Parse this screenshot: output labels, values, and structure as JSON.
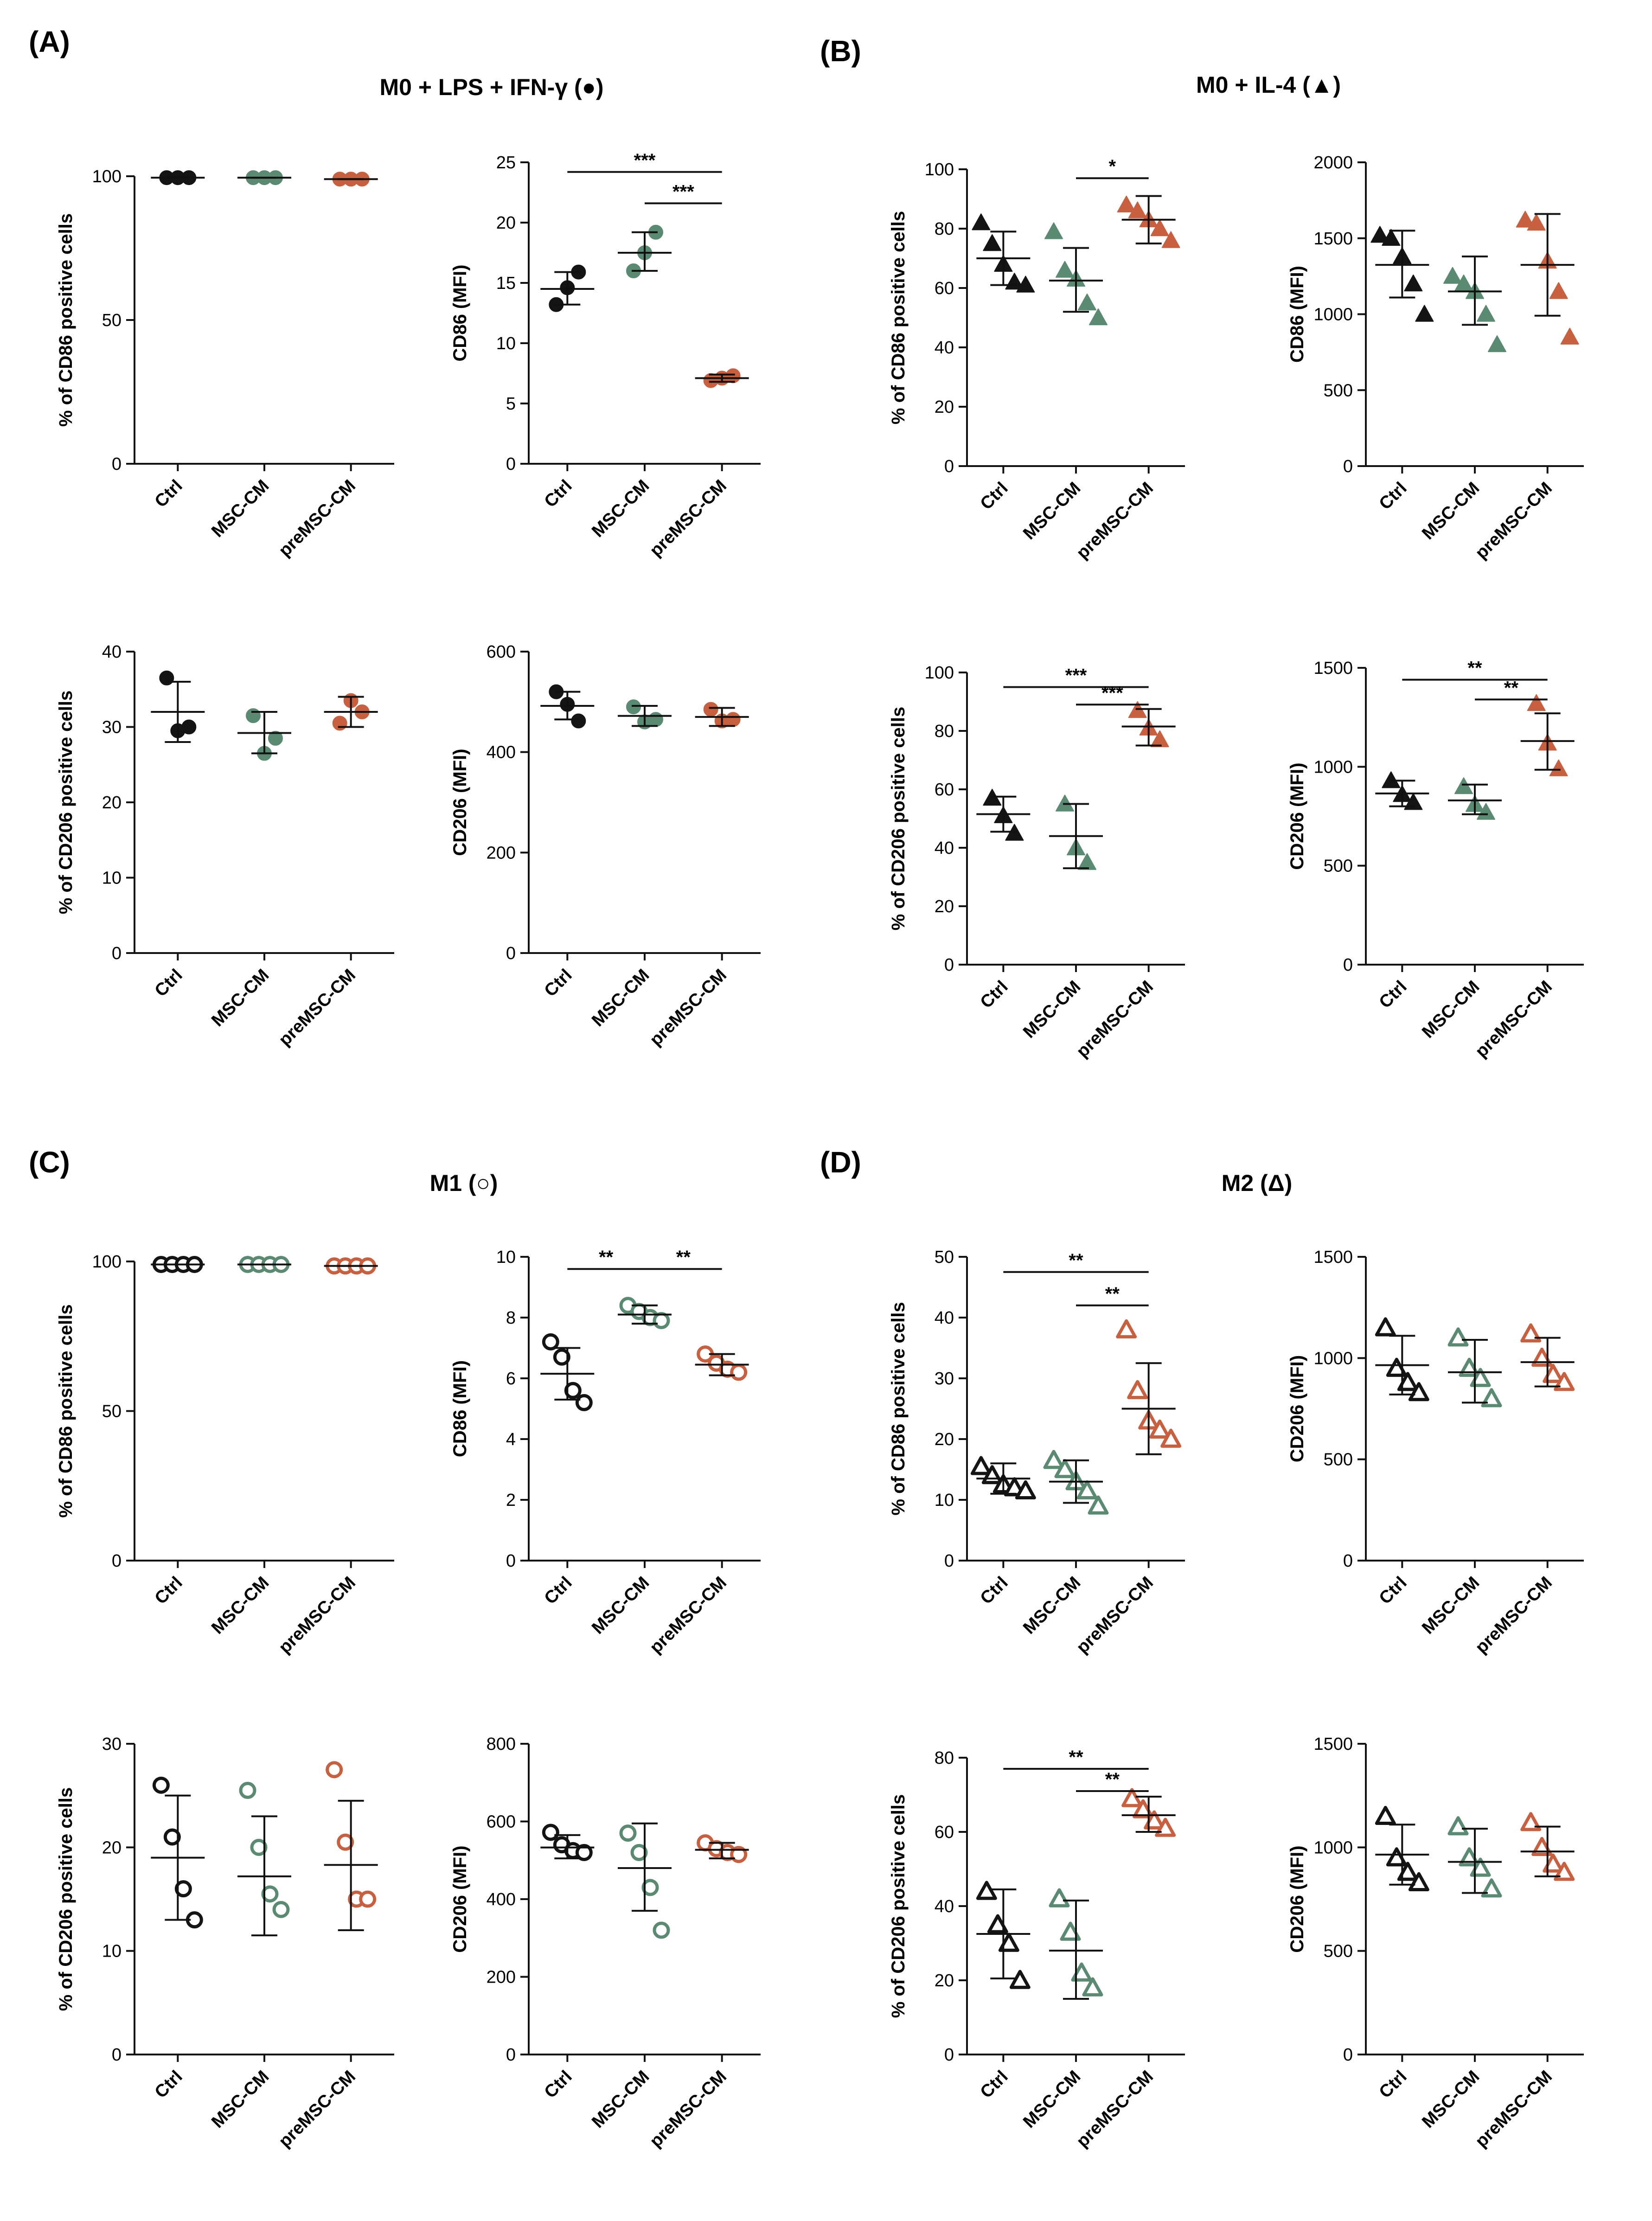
{
  "panels": [
    {
      "letter": "(A)",
      "title": "M0 + LPS + IFN-γ (●)"
    },
    {
      "letter": "(B)",
      "title": "M0 + IL-4 (▲)"
    },
    {
      "letter": "(C)",
      "title": "M1 (○)"
    },
    {
      "letter": "(D)",
      "title": "M2 (Δ)"
    }
  ],
  "group_colors": {
    "Ctrl": "#141414",
    "MSC-CM": "#5b8a72",
    "preMSC-CM": "#c8603f"
  },
  "chart_data": [
    {
      "id": "A1",
      "type": "scatter",
      "marker": "filled-circle",
      "ylabel": "% of CD86 positive cells",
      "ylim": [
        0,
        100
      ],
      "yticks": [
        0,
        50,
        100
      ],
      "categories": [
        "Ctrl",
        "MSC-CM",
        "preMSC-CM"
      ],
      "points": [
        [
          99.5,
          99.5,
          99.5
        ],
        [
          99.5,
          99.5,
          99.5
        ],
        [
          99,
          99,
          99
        ]
      ],
      "mean": [
        99.5,
        99.5,
        99
      ],
      "error": [
        [
          99.5,
          99.5
        ],
        [
          99.5,
          99.5
        ],
        [
          99,
          99
        ]
      ],
      "significance": []
    },
    {
      "id": "A2",
      "type": "scatter",
      "marker": "filled-circle",
      "ylabel": "CD86 (MFI)",
      "ylim": [
        0,
        25
      ],
      "yticks": [
        0,
        5,
        10,
        15,
        20,
        25
      ],
      "categories": [
        "Ctrl",
        "MSC-CM",
        "preMSC-CM"
      ],
      "points": [
        [
          13.2,
          14.6,
          15.9
        ],
        [
          16,
          17.5,
          19.2
        ],
        [
          6.9,
          7.1,
          7.3
        ]
      ],
      "mean": [
        14.5,
        17.5,
        7.1
      ],
      "error": [
        [
          13.2,
          15.9
        ],
        [
          16,
          19.2
        ],
        [
          6.8,
          7.4
        ]
      ],
      "significance": [
        {
          "from": 0,
          "to": 2,
          "label": "***",
          "y": 24.2
        },
        {
          "from": 1,
          "to": 2,
          "label": "***",
          "y": 21.6
        }
      ]
    },
    {
      "id": "A3",
      "type": "scatter",
      "marker": "filled-circle",
      "ylabel": "% of CD206 positive cells",
      "ylim": [
        0,
        40
      ],
      "yticks": [
        0,
        10,
        20,
        30,
        40
      ],
      "categories": [
        "Ctrl",
        "MSC-CM",
        "preMSC-CM"
      ],
      "points": [
        [
          36.5,
          29.5,
          30
        ],
        [
          31.5,
          26.5,
          28.5
        ],
        [
          30.5,
          33.5,
          32
        ]
      ],
      "mean": [
        32,
        29.2,
        32
      ],
      "error": [
        [
          28,
          36
        ],
        [
          26.5,
          32
        ],
        [
          30,
          34
        ]
      ],
      "significance": []
    },
    {
      "id": "A4",
      "type": "scatter",
      "marker": "filled-circle",
      "ylabel": "CD206 (MFI)",
      "ylim": [
        0,
        600
      ],
      "yticks": [
        0,
        200,
        400,
        600
      ],
      "categories": [
        "Ctrl",
        "MSC-CM",
        "preMSC-CM"
      ],
      "points": [
        [
          520,
          495,
          462
        ],
        [
          490,
          460,
          465
        ],
        [
          485,
          462,
          465
        ]
      ],
      "mean": [
        492,
        472,
        470
      ],
      "error": [
        [
          465,
          520
        ],
        [
          452,
          492
        ],
        [
          452,
          488
        ]
      ],
      "significance": []
    },
    {
      "id": "B1",
      "type": "scatter",
      "marker": "filled-triangle",
      "ylabel": "% of CD86 positive cells",
      "ylim": [
        0,
        100
      ],
      "yticks": [
        0,
        20,
        40,
        60,
        80,
        100
      ],
      "categories": [
        "Ctrl",
        "MSC-CM",
        "preMSC-CM"
      ],
      "points": [
        [
          82,
          75,
          68,
          62,
          61
        ],
        [
          79,
          66,
          63,
          55,
          50
        ],
        [
          88,
          86,
          83,
          80,
          76
        ]
      ],
      "mean": [
        70,
        62.5,
        83
      ],
      "error": [
        [
          61,
          79
        ],
        [
          52,
          73.5
        ],
        [
          75,
          91
        ]
      ],
      "significance": [
        {
          "from": 1,
          "to": 2,
          "label": "*",
          "y": 97
        }
      ]
    },
    {
      "id": "B2",
      "type": "scatter",
      "marker": "filled-triangle",
      "ylabel": "CD86 (MFI)",
      "ylim": [
        0,
        2000
      ],
      "yticks": [
        0,
        500,
        1000,
        1500,
        2000
      ],
      "categories": [
        "Ctrl",
        "MSC-CM",
        "preMSC-CM"
      ],
      "points": [
        [
          1520,
          1500,
          1380,
          1200,
          1000
        ],
        [
          1250,
          1200,
          1150,
          1000,
          800
        ],
        [
          1620,
          1600,
          1350,
          1150,
          850
        ]
      ],
      "mean": [
        1325,
        1150,
        1325
      ],
      "error": [
        [
          1110,
          1550
        ],
        [
          930,
          1380
        ],
        [
          990,
          1660
        ]
      ],
      "significance": []
    },
    {
      "id": "B3",
      "type": "scatter",
      "marker": "filled-triangle",
      "ylabel": "% of CD206 positive cells",
      "ylim": [
        0,
        100
      ],
      "yticks": [
        0,
        20,
        40,
        60,
        80,
        100
      ],
      "categories": [
        "Ctrl",
        "MSC-CM",
        "preMSC-CM"
      ],
      "points": [
        [
          57,
          51,
          45
        ],
        [
          55,
          40,
          35
        ],
        [
          87,
          81,
          77
        ]
      ],
      "mean": [
        51.5,
        44,
        81.5
      ],
      "error": [
        [
          45.5,
          57.5
        ],
        [
          33,
          55
        ],
        [
          75,
          87.5
        ]
      ],
      "significance": [
        {
          "from": 0,
          "to": 2,
          "label": "***",
          "y": 95
        },
        {
          "from": 1,
          "to": 2,
          "label": "***",
          "y": 89
        }
      ]
    },
    {
      "id": "B4",
      "type": "scatter",
      "marker": "filled-triangle",
      "ylabel": "CD206 (MFI)",
      "ylim": [
        0,
        1500
      ],
      "yticks": [
        0,
        500,
        1000,
        1500
      ],
      "categories": [
        "Ctrl",
        "MSC-CM",
        "preMSC-CM"
      ],
      "points": [
        [
          930,
          860,
          820
        ],
        [
          900,
          810,
          770
        ],
        [
          1320,
          1120,
          990
        ]
      ],
      "mean": [
        865,
        830,
        1130
      ],
      "error": [
        [
          800,
          930
        ],
        [
          760,
          910
        ],
        [
          985,
          1270
        ]
      ],
      "significance": [
        {
          "from": 0,
          "to": 2,
          "label": "**",
          "y": 1440
        },
        {
          "from": 1,
          "to": 2,
          "label": "**",
          "y": 1340
        }
      ]
    },
    {
      "id": "C1",
      "type": "scatter",
      "marker": "open-circle",
      "ylabel": "% of CD86 positive cells",
      "ylim": [
        0,
        100
      ],
      "yticks": [
        0,
        50,
        100
      ],
      "categories": [
        "Ctrl",
        "MSC-CM",
        "preMSC-CM"
      ],
      "points": [
        [
          99,
          99,
          99,
          99
        ],
        [
          99,
          99,
          99,
          99
        ],
        [
          98.5,
          98.5,
          98.5,
          98.5
        ]
      ],
      "mean": [
        99,
        99,
        98.5
      ],
      "error": [
        [
          99,
          99
        ],
        [
          99,
          99
        ],
        [
          98.5,
          98.5
        ]
      ],
      "significance": []
    },
    {
      "id": "C2",
      "type": "scatter",
      "marker": "open-circle",
      "ylabel": "CD86 (MFI)",
      "ylim": [
        0,
        10
      ],
      "yticks": [
        0,
        2,
        4,
        6,
        8,
        10
      ],
      "categories": [
        "Ctrl",
        "MSC-CM",
        "preMSC-CM"
      ],
      "points": [
        [
          7.2,
          6.7,
          5.6,
          5.2
        ],
        [
          8.4,
          8.2,
          8,
          7.9
        ],
        [
          6.8,
          6.5,
          6.3,
          6.2
        ]
      ],
      "mean": [
        6.15,
        8.1,
        6.45
      ],
      "error": [
        [
          5.3,
          7
        ],
        [
          7.8,
          8.4
        ],
        [
          6.1,
          6.8
        ]
      ],
      "significance": [
        {
          "from": 0,
          "to": 1,
          "label": "**",
          "y": 9.6
        },
        {
          "from": 1,
          "to": 2,
          "label": "**",
          "y": 9.6
        }
      ]
    },
    {
      "id": "C3",
      "type": "scatter",
      "marker": "open-circle",
      "ylabel": "% of CD206 positive cells",
      "ylim": [
        0,
        30
      ],
      "yticks": [
        0,
        10,
        20,
        30
      ],
      "categories": [
        "Ctrl",
        "MSC-CM",
        "preMSC-CM"
      ],
      "points": [
        [
          26,
          21,
          16,
          13
        ],
        [
          25.5,
          20,
          15.5,
          14
        ],
        [
          27.5,
          20.5,
          15,
          15
        ]
      ],
      "mean": [
        19,
        17.2,
        18.3
      ],
      "error": [
        [
          13,
          25
        ],
        [
          11.5,
          23
        ],
        [
          12,
          24.5
        ]
      ],
      "significance": []
    },
    {
      "id": "C4",
      "type": "scatter",
      "marker": "open-circle",
      "ylabel": "CD206 (MFI)",
      "ylim": [
        0,
        800
      ],
      "yticks": [
        0,
        200,
        400,
        600,
        800
      ],
      "categories": [
        "Ctrl",
        "MSC-CM",
        "preMSC-CM"
      ],
      "points": [
        [
          572,
          540,
          525,
          520
        ],
        [
          570,
          520,
          430,
          320
        ],
        [
          545,
          530,
          520,
          515
        ]
      ],
      "mean": [
        533,
        480,
        527
      ],
      "error": [
        [
          505,
          565
        ],
        [
          370,
          595
        ],
        [
          505,
          545
        ]
      ],
      "significance": []
    },
    {
      "id": "D1",
      "type": "scatter",
      "marker": "open-triangle",
      "ylabel": "% of CD86 positive cells",
      "ylim": [
        0,
        50
      ],
      "yticks": [
        0,
        10,
        20,
        30,
        40,
        50
      ],
      "categories": [
        "Ctrl",
        "MSC-CM",
        "preMSC-CM"
      ],
      "points": [
        [
          15.5,
          14,
          12.5,
          12,
          11.5
        ],
        [
          16.5,
          15,
          13,
          11.5,
          9
        ],
        [
          38,
          28,
          23,
          21.5,
          20
        ]
      ],
      "mean": [
        13.5,
        13,
        25
      ],
      "error": [
        [
          11,
          16
        ],
        [
          9.5,
          16.5
        ],
        [
          17.5,
          32.5
        ]
      ],
      "significance": [
        {
          "from": 0,
          "to": 2,
          "label": "**",
          "y": 47.5
        },
        {
          "from": 1,
          "to": 2,
          "label": "**",
          "y": 42
        }
      ]
    },
    {
      "id": "D2",
      "type": "scatter",
      "marker": "open-triangle",
      "ylabel": "CD206 (MFI)",
      "ylim": [
        0,
        1500
      ],
      "yticks": [
        0,
        500,
        1000,
        1500
      ],
      "categories": [
        "Ctrl",
        "MSC-CM",
        "preMSC-CM"
      ],
      "points": [
        [
          1150,
          950,
          880,
          830
        ],
        [
          1100,
          950,
          900,
          800
        ],
        [
          1120,
          1000,
          920,
          880
        ]
      ],
      "mean": [
        965,
        930,
        980
      ],
      "error": [
        [
          820,
          1110
        ],
        [
          780,
          1090
        ],
        [
          860,
          1100
        ]
      ],
      "significance": []
    },
    {
      "id": "D3",
      "type": "scatter",
      "marker": "open-triangle",
      "ylabel": "% of CD206 positive cells",
      "ylim": [
        0,
        80
      ],
      "yticks": [
        0,
        20,
        40,
        60,
        80
      ],
      "categories": [
        "Ctrl",
        "MSC-CM",
        "preMSC-CM"
      ],
      "points": [
        [
          44,
          35,
          30,
          20
        ],
        [
          42,
          33,
          22,
          18
        ],
        [
          69,
          66,
          63,
          61
        ]
      ],
      "mean": [
        32.5,
        28,
        64.5
      ],
      "error": [
        [
          20.5,
          44.5
        ],
        [
          15,
          41.5
        ],
        [
          60,
          69.5
        ]
      ],
      "significance": [
        {
          "from": 0,
          "to": 2,
          "label": "**",
          "y": 77
        },
        {
          "from": 1,
          "to": 2,
          "label": "**",
          "y": 71
        }
      ]
    },
    {
      "id": "D4",
      "type": "scatter",
      "marker": "open-triangle",
      "ylabel": "CD206 (MFI)",
      "ylim": [
        0,
        1500
      ],
      "yticks": [
        0,
        500,
        1000,
        1500
      ],
      "categories": [
        "Ctrl",
        "MSC-CM",
        "preMSC-CM"
      ],
      "points": [
        [
          1150,
          950,
          880,
          830
        ],
        [
          1100,
          950,
          900,
          800
        ],
        [
          1120,
          1000,
          920,
          880
        ]
      ],
      "mean": [
        965,
        930,
        980
      ],
      "error": [
        [
          820,
          1110
        ],
        [
          780,
          1090
        ],
        [
          860,
          1100
        ]
      ],
      "significance": []
    }
  ]
}
